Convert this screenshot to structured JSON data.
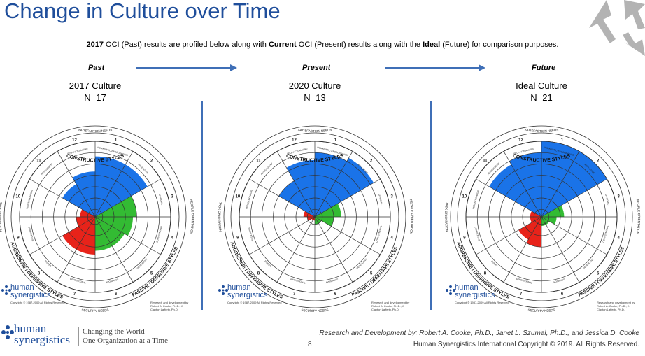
{
  "header": {
    "title": "Change in Culture over Time"
  },
  "intro": {
    "part1": "2017",
    "part2": " OCI (Past) results are profiled below along with ",
    "part3": "Current",
    "part4": " OCI (Present) results along with the ",
    "part5": "Ideal",
    "part6": " (Future) for comparison purposes."
  },
  "phases": [
    "Past",
    "Present",
    "Future"
  ],
  "colors": {
    "constructive": "#1a73e8",
    "passive": "#33bb33",
    "aggressive": "#e8231a",
    "title": "#1f4e9b",
    "divider": "#3f6fb7"
  },
  "circumplex": {
    "top": "SATISFACTION NEEDS",
    "bottom": "SECURITY NEEDS",
    "left": "TASK ORIENTATION",
    "right": "PEOPLE ORIENTATION",
    "constructive": "CONSTRUCTIVE STYLES",
    "passive": "PASSIVE / DEFENSIVE STYLES",
    "aggressive": "AGGRESSIVE / DEFENSIVE STYLES",
    "styles": [
      "HUMANISTIC-ENCOURAGING",
      "AFFILIATIVE",
      "APPROVAL",
      "CONVENTIONAL",
      "DEPENDENT",
      "AVOIDANCE",
      "OPPOSITIONAL",
      "POWER",
      "COMPETITIVE",
      "PERFECTIONISTIC",
      "ACHIEVEMENT",
      "SELF-ACTUALIZING"
    ],
    "clock": [
      "1",
      "2",
      "3",
      "4",
      "5",
      "6",
      "7",
      "8",
      "9",
      "10",
      "11",
      "12"
    ]
  },
  "logo": {
    "name_line1": "human",
    "name_line2": "synergistics",
    "copyright": "Copyright © 1987-2009 All Rights Reserved",
    "research": "Research and development by Robert A. Cooke, Ph.D., J. Clayton Lafferty, Ph.D."
  },
  "footer": {
    "logo_line1": "human",
    "logo_line2": "synergistics",
    "tagline1": "Changing the World –",
    "tagline2": "One Organization at a Time",
    "page": "8",
    "credits1": "Research and Development by: Robert A. Cooke, Ph.D., Janet L. Szumal, Ph.D., and Jessica D. Cooke",
    "credits2": "Human Synergistics International Copyright © 2019. All Rights Reserved."
  },
  "chart_data": [
    {
      "type": "polar-area",
      "title": "2017 Culture",
      "subtitle": "N=17",
      "categories": [
        "1",
        "2",
        "3",
        "4",
        "5",
        "6",
        "7",
        "8",
        "9",
        "10",
        "11",
        "12"
      ],
      "values": [
        80,
        80,
        55,
        50,
        45,
        45,
        50,
        50,
        25,
        20,
        50,
        60
      ],
      "rlim": [
        0,
        100
      ]
    },
    {
      "type": "polar-area",
      "title": "2020 Culture",
      "subtitle": "N=13",
      "categories": [
        "1",
        "2",
        "3",
        "4",
        "5",
        "6",
        "7",
        "8",
        "9",
        "10",
        "11",
        "12"
      ],
      "values": [
        85,
        90,
        35,
        25,
        10,
        10,
        5,
        5,
        10,
        15,
        55,
        75
      ],
      "rlim": [
        0,
        100
      ]
    },
    {
      "type": "polar-area",
      "title": "Ideal Culture",
      "subtitle": "N=21",
      "categories": [
        "1",
        "2",
        "3",
        "4",
        "5",
        "6",
        "7",
        "8",
        "9",
        "10",
        "11",
        "12"
      ],
      "values": [
        100,
        100,
        30,
        20,
        12,
        12,
        40,
        35,
        15,
        15,
        80,
        85
      ],
      "rlim": [
        0,
        100
      ]
    }
  ]
}
